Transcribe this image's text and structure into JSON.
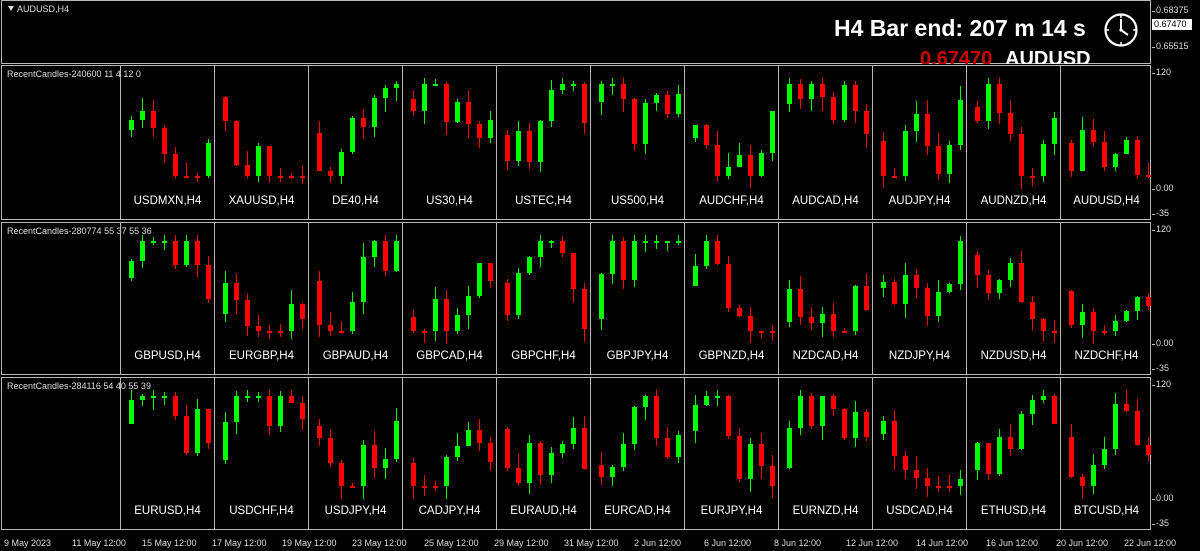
{
  "main": {
    "title": "AUDUSD,H4",
    "bar_end_text": "H4 Bar end: 207 m 14 s",
    "price_text": "0.67470",
    "symbol_text": "AUDUSD",
    "axis": [
      "0.68375",
      "0.67470",
      "0.65515"
    ],
    "current_price": "0.67470",
    "clock_icon": "clock-icon"
  },
  "colors": {
    "bull": "#00ff00",
    "bear": "#ff0000",
    "grid": "#b8b8b8",
    "background": "#000000",
    "price_red": "#cc0000"
  },
  "panes": [
    {
      "label": "RecentCandles-240600 11 4 12 0",
      "axis": [
        "120",
        "0.00",
        "-35"
      ],
      "symbols": [
        "USDMXN,H4",
        "XAUUSD,H4",
        "DE40,H4",
        "US30,H4",
        "USTEC,H4",
        "US500,H4",
        "AUDCHF,H4",
        "AUDCAD,H4",
        "AUDJPY,H4",
        "AUDNZD,H4",
        "AUDUSD,H4"
      ]
    },
    {
      "label": "RecentCandles-280774 55 37 55 36",
      "axis": [
        "120",
        "0.00",
        "-35"
      ],
      "symbols": [
        "GBPUSD,H4",
        "EURGBP,H4",
        "GBPAUD,H4",
        "GBPCAD,H4",
        "GBPCHF,H4",
        "GBPJPY,H4",
        "GBPNZD,H4",
        "NZDCAD,H4",
        "NZDJPY,H4",
        "NZDUSD,H4",
        "NZDCHF,H4"
      ]
    },
    {
      "label": "RecentCandles-284116 54 40 55 39",
      "axis": [
        "120",
        "0.00",
        "-35"
      ],
      "symbols": [
        "EURUSD,H4",
        "USDCHF,H4",
        "USDJPY,H4",
        "CADJPY,H4",
        "EURAUD,H4",
        "EURCAD,H4",
        "EURJPY,H4",
        "EURNZD,H4",
        "USDCAD,H4",
        "ETHUSD,H4",
        "BTCUSD,H4"
      ]
    }
  ],
  "x_axis": [
    "9 May 2023",
    "11 May 12:00",
    "15 May 12:00",
    "17 May 12:00",
    "19 May 12:00",
    "23 May 12:00",
    "25 May 12:00",
    "29 May 12:00",
    "31 May 12:00",
    "2 Jun 12:00",
    "6 Jun 12:00",
    "8 Jun 12:00",
    "12 Jun 12:00",
    "14 Jun 12:00",
    "16 Jun 12:00",
    "20 Jun 12:00",
    "22 Jun 12:00"
  ]
}
